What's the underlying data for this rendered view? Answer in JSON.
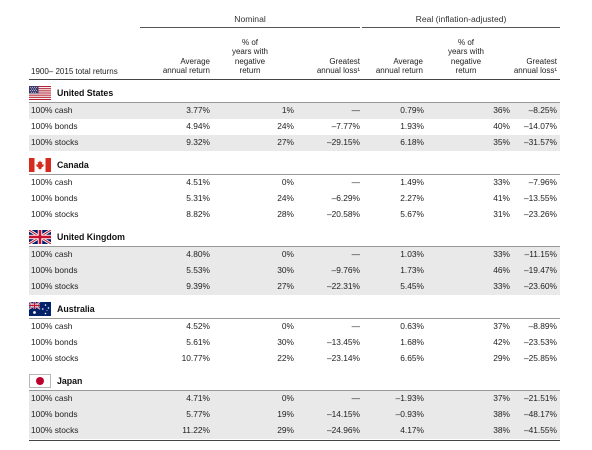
{
  "groups": {
    "nominal": "Nominal",
    "real": "Real (inflation-adjusted)"
  },
  "headers": {
    "first_column": "1900– 2015 total returns",
    "nominal_avg": [
      "Average",
      "annual return"
    ],
    "nominal_neg": [
      "% of",
      "years with",
      "negative",
      "return"
    ],
    "nominal_loss": [
      "Greatest",
      "annual loss¹"
    ],
    "real_avg": [
      "Average",
      "annual return"
    ],
    "real_neg": [
      "% of",
      "years with",
      "negative",
      "return"
    ],
    "real_loss": [
      "Greatest",
      "annual loss¹"
    ]
  },
  "countries": [
    {
      "name": "United States",
      "flag_icon": "us-flag-icon",
      "rows": [
        {
          "asset": "100% cash",
          "n_avg": "3.77%",
          "n_neg": "1%",
          "n_loss": "—",
          "r_avg": "0.79%",
          "r_neg": "36%",
          "r_loss": "–8.25%"
        },
        {
          "asset": "100% bonds",
          "n_avg": "4.94%",
          "n_neg": "24%",
          "n_loss": "–7.77%",
          "r_avg": "1.93%",
          "r_neg": "40%",
          "r_loss": "–14.07%"
        },
        {
          "asset": "100% stocks",
          "n_avg": "9.32%",
          "n_neg": "27%",
          "n_loss": "–29.15%",
          "r_avg": "6.18%",
          "r_neg": "35%",
          "r_loss": "–31.57%"
        }
      ]
    },
    {
      "name": "Canada",
      "flag_icon": "canada-flag-icon",
      "rows": [
        {
          "asset": "100% cash",
          "n_avg": "4.51%",
          "n_neg": "0%",
          "n_loss": "—",
          "r_avg": "1.49%",
          "r_neg": "33%",
          "r_loss": "–7.96%"
        },
        {
          "asset": "100% bonds",
          "n_avg": "5.31%",
          "n_neg": "24%",
          "n_loss": "–6.29%",
          "r_avg": "2.27%",
          "r_neg": "41%",
          "r_loss": "–13.55%"
        },
        {
          "asset": "100% stocks",
          "n_avg": "8.82%",
          "n_neg": "28%",
          "n_loss": "–20.58%",
          "r_avg": "5.67%",
          "r_neg": "31%",
          "r_loss": "–23.26%"
        }
      ]
    },
    {
      "name": "United Kingdom",
      "flag_icon": "uk-flag-icon",
      "rows": [
        {
          "asset": "100% cash",
          "n_avg": "4.80%",
          "n_neg": "0%",
          "n_loss": "—",
          "r_avg": "1.03%",
          "r_neg": "33%",
          "r_loss": "–11.15%"
        },
        {
          "asset": "100% bonds",
          "n_avg": "5.53%",
          "n_neg": "30%",
          "n_loss": "–9.76%",
          "r_avg": "1.73%",
          "r_neg": "46%",
          "r_loss": "–19.47%"
        },
        {
          "asset": "100% stocks",
          "n_avg": "9.39%",
          "n_neg": "27%",
          "n_loss": "–22.31%",
          "r_avg": "5.45%",
          "r_neg": "33%",
          "r_loss": "–23.60%"
        }
      ]
    },
    {
      "name": "Australia",
      "flag_icon": "australia-flag-icon",
      "rows": [
        {
          "asset": "100% cash",
          "n_avg": "4.52%",
          "n_neg": "0%",
          "n_loss": "—",
          "r_avg": "0.63%",
          "r_neg": "37%",
          "r_loss": "–8.89%"
        },
        {
          "asset": "100% bonds",
          "n_avg": "5.61%",
          "n_neg": "30%",
          "n_loss": "–13.45%",
          "r_avg": "1.68%",
          "r_neg": "42%",
          "r_loss": "–23.53%"
        },
        {
          "asset": "100% stocks",
          "n_avg": "10.77%",
          "n_neg": "22%",
          "n_loss": "–23.14%",
          "r_avg": "6.65%",
          "r_neg": "29%",
          "r_loss": "–25.85%"
        }
      ]
    },
    {
      "name": "Japan",
      "flag_icon": "japan-flag-icon",
      "rows": [
        {
          "asset": "100% cash",
          "n_avg": "4.71%",
          "n_neg": "0%",
          "n_loss": "—",
          "r_avg": "–1.93%",
          "r_neg": "37%",
          "r_loss": "–21.51%"
        },
        {
          "asset": "100% bonds",
          "n_avg": "5.77%",
          "n_neg": "19%",
          "n_loss": "–14.15%",
          "r_avg": "–0.93%",
          "r_neg": "38%",
          "r_loss": "–48.17%"
        },
        {
          "asset": "100% stocks",
          "n_avg": "11.22%",
          "n_neg": "29%",
          "n_loss": "–24.96%",
          "r_avg": "4.17%",
          "r_neg": "38%",
          "r_loss": "–41.55%"
        }
      ]
    }
  ],
  "colors": {
    "row_shade": "#e9e9e9",
    "rule_dark": "#444444",
    "rule_light": "#999999",
    "text": "#222222"
  }
}
